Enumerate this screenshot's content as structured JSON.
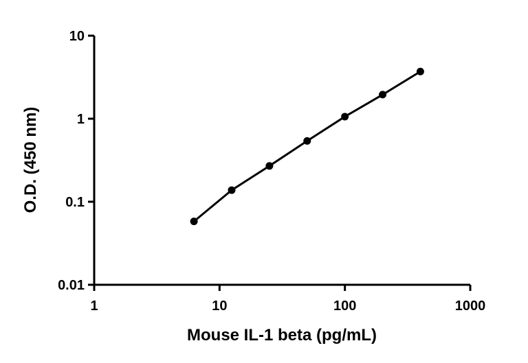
{
  "chart_data": {
    "type": "line",
    "x_label": "Mouse IL-1 beta (pg/mL)",
    "y_label": "O.D. (450 nm)",
    "x": [
      6.25,
      12.5,
      25,
      50,
      100,
      200,
      400
    ],
    "series": [
      {
        "name": "Mouse IL-1 beta",
        "color": "#000000",
        "values": [
          0.058,
          0.138,
          0.27,
          0.54,
          1.06,
          1.95,
          3.7
        ]
      }
    ],
    "xlim": [
      1,
      1000
    ],
    "xticks": [
      1,
      10,
      100,
      1000
    ],
    "ylim": [
      0.01,
      10
    ],
    "yticks": [
      0.01,
      0.1,
      1,
      10
    ],
    "xscale": "log",
    "yscale": "log",
    "grid": false,
    "legend": false
  }
}
